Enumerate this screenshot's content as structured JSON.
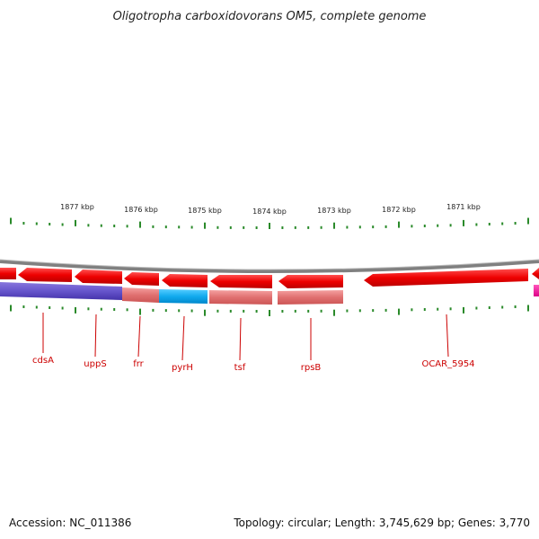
{
  "title": "Oligotropha carboxidovorans OM5, complete genome",
  "footer": {
    "accession": "Accession: NC_011386",
    "summary": "Topology: circular; Length: 3,745,629 bp; Genes: 3,770"
  },
  "scale": {
    "labels": [
      "1877 kbp",
      "1876 kbp",
      "1875 kbp",
      "1874 kbp",
      "1873 kbp",
      "1872 kbp",
      "1871 kbp"
    ]
  },
  "colors": {
    "cds_red": "#ee0000",
    "cds_red_dark": "#aa0000",
    "rna_light_red": "#e67a7a",
    "blue": "#6655cc",
    "cyan": "#11aaee",
    "magenta": "#ff0099",
    "tick_green": "#2a8a2a",
    "backbone": "#888888",
    "label_red": "#cc0000"
  },
  "gene_labels": [
    "cdsA",
    "uppS",
    "frr",
    "pyrH",
    "tsf",
    "rpsB",
    "OCAR_5954"
  ]
}
